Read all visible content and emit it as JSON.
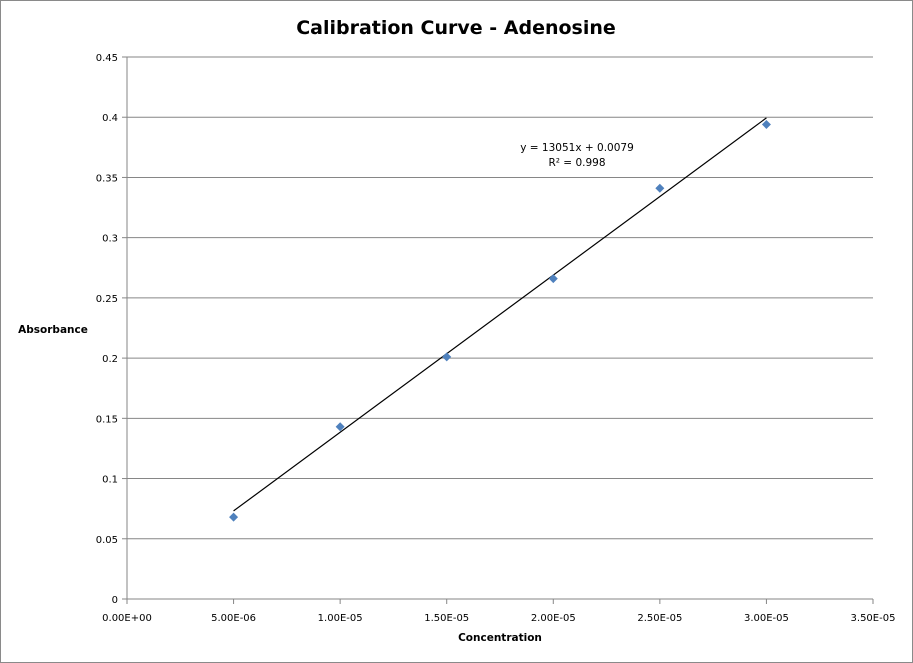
{
  "chart_data": {
    "type": "scatter",
    "title": "Calibration Curve - Adenosine",
    "xlabel": "Concentration",
    "ylabel": "Absorbance",
    "xlim": [
      0,
      3.5e-05
    ],
    "ylim": [
      0,
      0.45
    ],
    "grid": "horizontal",
    "x_tick_labels": [
      "0.00E+00",
      "5.00E-06",
      "1.00E-05",
      "1.50E-05",
      "2.00E-05",
      "2.50E-05",
      "3.00E-05",
      "3.50E-05"
    ],
    "x_ticks": [
      0,
      5e-06,
      1e-05,
      1.5e-05,
      2e-05,
      2.5e-05,
      3e-05,
      3.5e-05
    ],
    "y_tick_labels": [
      "0",
      "0.05",
      "0.1",
      "0.15",
      "0.2",
      "0.25",
      "0.3",
      "0.35",
      "0.4",
      "0.45"
    ],
    "y_ticks": [
      0,
      0.05,
      0.1,
      0.15,
      0.2,
      0.25,
      0.3,
      0.35,
      0.4,
      0.45
    ],
    "series": [
      {
        "name": "Absorbance",
        "color": "#4f81bd",
        "marker": "diamond",
        "x": [
          5e-06,
          1e-05,
          1.5e-05,
          2e-05,
          2.5e-05,
          3e-05
        ],
        "y": [
          0.068,
          0.143,
          0.201,
          0.266,
          0.341,
          0.394
        ]
      }
    ],
    "trendline": {
      "slope": 13051,
      "intercept": 0.0079,
      "x_range": [
        5e-06,
        3e-05
      ],
      "color": "#000000",
      "equation": "y = 13051x + 0.0079",
      "r2_label": "R² = 0.998"
    }
  }
}
